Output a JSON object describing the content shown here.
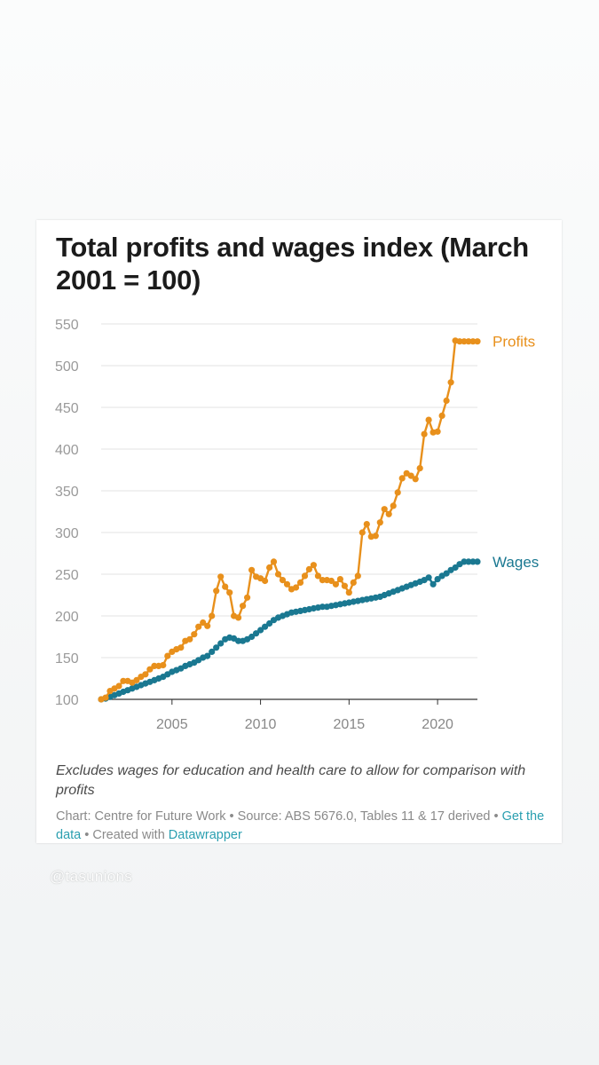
{
  "chart_data": {
    "type": "line",
    "title": "Total profits and wages index (March 2001 = 100)",
    "xlabel": "",
    "ylabel": "",
    "xlim": [
      2001,
      2022.25
    ],
    "ylim": [
      100,
      550
    ],
    "x_ticks": [
      2005,
      2010,
      2015,
      2020
    ],
    "y_ticks": [
      100,
      150,
      200,
      250,
      300,
      350,
      400,
      450,
      500,
      550
    ],
    "grid": "horizontal",
    "legend": "end-of-line labels",
    "series": [
      {
        "name": "Profits",
        "color": "#e8901c",
        "x": [
          2001.0,
          2001.25,
          2001.5,
          2001.75,
          2002.0,
          2002.25,
          2002.5,
          2002.75,
          2003.0,
          2003.25,
          2003.5,
          2003.75,
          2004.0,
          2004.25,
          2004.5,
          2004.75,
          2005.0,
          2005.25,
          2005.5,
          2005.75,
          2006.0,
          2006.25,
          2006.5,
          2006.75,
          2007.0,
          2007.25,
          2007.5,
          2007.75,
          2008.0,
          2008.25,
          2008.5,
          2008.75,
          2009.0,
          2009.25,
          2009.5,
          2009.75,
          2010.0,
          2010.25,
          2010.5,
          2010.75,
          2011.0,
          2011.25,
          2011.5,
          2011.75,
          2012.0,
          2012.25,
          2012.5,
          2012.75,
          2013.0,
          2013.25,
          2013.5,
          2013.75,
          2014.0,
          2014.25,
          2014.5,
          2014.75,
          2015.0,
          2015.25,
          2015.5,
          2015.75,
          2016.0,
          2016.25,
          2016.5,
          2016.75,
          2017.0,
          2017.25,
          2017.5,
          2017.75,
          2018.0,
          2018.25,
          2018.5,
          2018.75,
          2019.0,
          2019.25,
          2019.5,
          2019.75,
          2020.0,
          2020.25,
          2020.5,
          2020.75,
          2021.0,
          2021.25,
          2021.5,
          2021.75,
          2022.0,
          2022.25
        ],
        "values": [
          100,
          102,
          110,
          113,
          116,
          122,
          122,
          120,
          123,
          127,
          130,
          136,
          140,
          140,
          141,
          152,
          157,
          160,
          162,
          170,
          172,
          178,
          187,
          192,
          188,
          200,
          230,
          247,
          235,
          228,
          200,
          198,
          212,
          222,
          255,
          247,
          245,
          242,
          258,
          265,
          250,
          243,
          238,
          232,
          234,
          240,
          248,
          256,
          261,
          248,
          243,
          243,
          242,
          238,
          244,
          236,
          228,
          240,
          248,
          300,
          310,
          295,
          296,
          312,
          328,
          322,
          332,
          348,
          365,
          371,
          368,
          364,
          377,
          418,
          435,
          420,
          421,
          440,
          458,
          480,
          530,
          529,
          529,
          529,
          529,
          529
        ]
      },
      {
        "name": "Wages",
        "color": "#1a7891",
        "x": [
          2001.0,
          2001.25,
          2001.5,
          2001.75,
          2002.0,
          2002.25,
          2002.5,
          2002.75,
          2003.0,
          2003.25,
          2003.5,
          2003.75,
          2004.0,
          2004.25,
          2004.5,
          2004.75,
          2005.0,
          2005.25,
          2005.5,
          2005.75,
          2006.0,
          2006.25,
          2006.5,
          2006.75,
          2007.0,
          2007.25,
          2007.5,
          2007.75,
          2008.0,
          2008.25,
          2008.5,
          2008.75,
          2009.0,
          2009.25,
          2009.5,
          2009.75,
          2010.0,
          2010.25,
          2010.5,
          2010.75,
          2011.0,
          2011.25,
          2011.5,
          2011.75,
          2012.0,
          2012.25,
          2012.5,
          2012.75,
          2013.0,
          2013.25,
          2013.5,
          2013.75,
          2014.0,
          2014.25,
          2014.5,
          2014.75,
          2015.0,
          2015.25,
          2015.5,
          2015.75,
          2016.0,
          2016.25,
          2016.5,
          2016.75,
          2017.0,
          2017.25,
          2017.5,
          2017.75,
          2018.0,
          2018.25,
          2018.5,
          2018.75,
          2019.0,
          2019.25,
          2019.5,
          2019.75,
          2020.0,
          2020.25,
          2020.5,
          2020.75,
          2021.0,
          2021.25,
          2021.5,
          2021.75,
          2022.0,
          2022.25
        ],
        "values": [
          100,
          101,
          103,
          105,
          107,
          109,
          111,
          113,
          115,
          117,
          119,
          121,
          123,
          125,
          127,
          130,
          133,
          135,
          137,
          140,
          142,
          144,
          147,
          150,
          152,
          157,
          162,
          167,
          172,
          174,
          173,
          170,
          170,
          172,
          175,
          179,
          183,
          187,
          191,
          195,
          198,
          200,
          202,
          204,
          205,
          206,
          207,
          208,
          209,
          210,
          211,
          211,
          212,
          213,
          214,
          215,
          216,
          217,
          218,
          219,
          220,
          221,
          222,
          223,
          225,
          227,
          229,
          231,
          233,
          235,
          237,
          239,
          241,
          243,
          246,
          238,
          244,
          248,
          251,
          255,
          258,
          262,
          265,
          265,
          265,
          265
        ]
      }
    ]
  },
  "note": "Excludes wages for education and health care to allow for comparison with profits",
  "source": {
    "part1": "Chart: Centre for Future Work • Source: ABS 5676.0, Tables 11 & 17 derived • ",
    "link1": "Get the data",
    "part2": " • Created with ",
    "link2": "Datawrapper"
  },
  "watermark": "@tasunions"
}
